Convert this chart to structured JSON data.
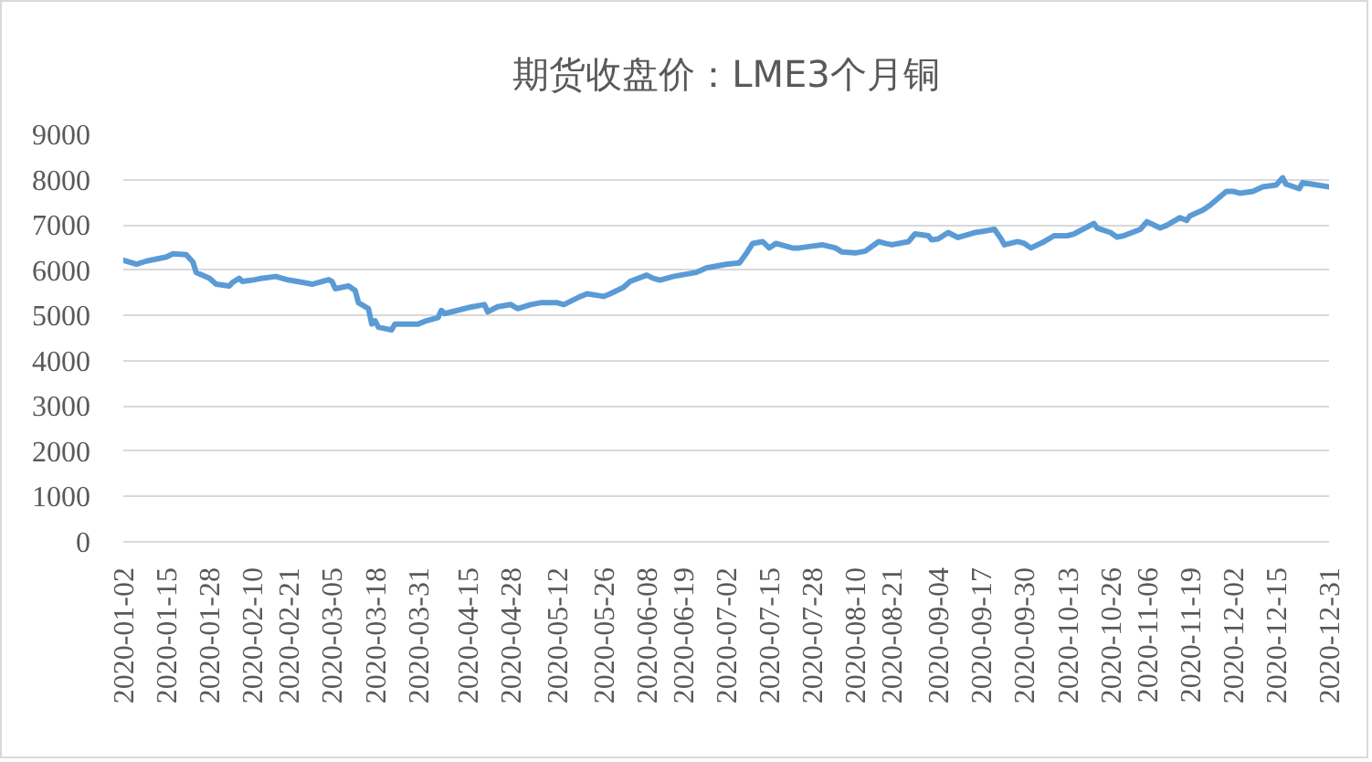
{
  "chart_data": {
    "type": "line",
    "title": "期货收盘价：LME3个月铜",
    "color": "#5b9bd5",
    "x": [
      "2020-01-02",
      "2020-01-06",
      "2020-01-09",
      "2020-01-15",
      "2020-01-17",
      "2020-01-21",
      "2020-01-23",
      "2020-01-24",
      "2020-01-28",
      "2020-01-30",
      "2020-02-03",
      "2020-02-04",
      "2020-02-06",
      "2020-02-07",
      "2020-02-10",
      "2020-02-12",
      "2020-02-17",
      "2020-02-21",
      "2020-02-25",
      "2020-02-28",
      "2020-03-02",
      "2020-03-04",
      "2020-03-05",
      "2020-03-06",
      "2020-03-10",
      "2020-03-12",
      "2020-03-13",
      "2020-03-16",
      "2020-03-17",
      "2020-03-18",
      "2020-03-19",
      "2020-03-23",
      "2020-03-24",
      "2020-03-27",
      "2020-03-31",
      "2020-04-02",
      "2020-04-06",
      "2020-04-07",
      "2020-04-08",
      "2020-04-15",
      "2020-04-20",
      "2020-04-21",
      "2020-04-24",
      "2020-04-28",
      "2020-04-30",
      "2020-05-04",
      "2020-05-07",
      "2020-05-12",
      "2020-05-14",
      "2020-05-19",
      "2020-05-21",
      "2020-05-26",
      "2020-05-28",
      "2020-06-01",
      "2020-06-03",
      "2020-06-08",
      "2020-06-10",
      "2020-06-12",
      "2020-06-16",
      "2020-06-19",
      "2020-06-23",
      "2020-06-26",
      "2020-07-02",
      "2020-07-06",
      "2020-07-08",
      "2020-07-10",
      "2020-07-13",
      "2020-07-15",
      "2020-07-17",
      "2020-07-22",
      "2020-07-24",
      "2020-07-28",
      "2020-07-31",
      "2020-08-04",
      "2020-08-06",
      "2020-08-10",
      "2020-08-13",
      "2020-08-17",
      "2020-08-19",
      "2020-08-21",
      "2020-08-26",
      "2020-08-28",
      "2020-09-01",
      "2020-09-02",
      "2020-09-04",
      "2020-09-07",
      "2020-09-10",
      "2020-09-15",
      "2020-09-17",
      "2020-09-21",
      "2020-09-23",
      "2020-09-24",
      "2020-09-28",
      "2020-09-30",
      "2020-10-02",
      "2020-10-06",
      "2020-10-09",
      "2020-10-13",
      "2020-10-15",
      "2020-10-21",
      "2020-10-22",
      "2020-10-26",
      "2020-10-28",
      "2020-10-30",
      "2020-11-04",
      "2020-11-06",
      "2020-11-10",
      "2020-11-12",
      "2020-11-16",
      "2020-11-18",
      "2020-11-19",
      "2020-11-23",
      "2020-11-25",
      "2020-11-30",
      "2020-12-02",
      "2020-12-04",
      "2020-12-08",
      "2020-12-11",
      "2020-12-15",
      "2020-12-17",
      "2020-12-18",
      "2020-12-22",
      "2020-12-23",
      "2020-12-31"
    ],
    "values": [
      6220,
      6130,
      6200,
      6290,
      6360,
      6340,
      6180,
      5950,
      5820,
      5690,
      5650,
      5730,
      5820,
      5750,
      5780,
      5810,
      5860,
      5780,
      5730,
      5690,
      5750,
      5790,
      5750,
      5590,
      5650,
      5550,
      5280,
      5150,
      4810,
      4880,
      4740,
      4680,
      4810,
      4810,
      4810,
      4870,
      4950,
      5110,
      5040,
      5170,
      5240,
      5080,
      5190,
      5240,
      5150,
      5240,
      5280,
      5280,
      5240,
      5420,
      5480,
      5420,
      5480,
      5620,
      5750,
      5890,
      5820,
      5780,
      5860,
      5900,
      5950,
      6050,
      6130,
      6160,
      6360,
      6590,
      6630,
      6490,
      6590,
      6490,
      6490,
      6530,
      6560,
      6490,
      6400,
      6380,
      6420,
      6630,
      6590,
      6560,
      6630,
      6800,
      6760,
      6670,
      6690,
      6830,
      6720,
      6830,
      6850,
      6900,
      6690,
      6560,
      6630,
      6590,
      6490,
      6630,
      6760,
      6760,
      6800,
      7030,
      6930,
      6830,
      6730,
      6760,
      6900,
      7070,
      6930,
      6990,
      7160,
      7100,
      7200,
      7330,
      7430,
      7740,
      7740,
      7700,
      7740,
      7840,
      7880,
      8040,
      7900,
      7800,
      7930,
      7840
    ],
    "xlim": [
      "2020-01-02",
      "2020-12-31"
    ],
    "xticks": [
      "2020-01-02",
      "2020-01-15",
      "2020-01-28",
      "2020-02-10",
      "2020-02-21",
      "2020-03-05",
      "2020-03-18",
      "2020-03-31",
      "2020-04-15",
      "2020-04-28",
      "2020-05-12",
      "2020-05-26",
      "2020-06-08",
      "2020-06-19",
      "2020-07-02",
      "2020-07-15",
      "2020-07-28",
      "2020-08-10",
      "2020-08-21",
      "2020-09-04",
      "2020-09-17",
      "2020-09-30",
      "2020-10-13",
      "2020-10-26",
      "2020-11-06",
      "2020-11-19",
      "2020-12-02",
      "2020-12-15",
      "2020-12-31"
    ],
    "ylim": [
      0,
      9000
    ],
    "yticks": [
      0,
      1000,
      2000,
      3000,
      4000,
      5000,
      6000,
      7000,
      8000,
      9000
    ],
    "grid": "y"
  }
}
